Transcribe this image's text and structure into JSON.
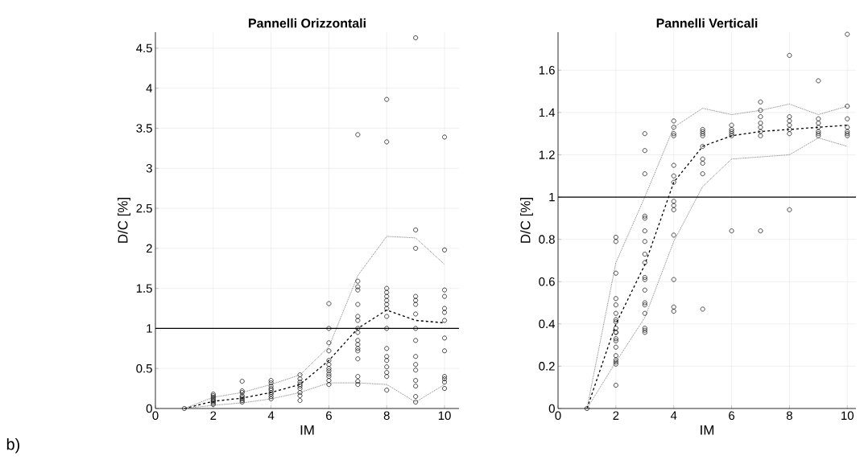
{
  "chart_data": [
    {
      "type": "scatter",
      "title": "Pannelli Orizzontali",
      "xlabel": "IM",
      "ylabel": "D/C [%]",
      "xlim": [
        0,
        10.5
      ],
      "ylim": [
        0,
        4.7
      ],
      "xticks": [
        0,
        2,
        4,
        6,
        8,
        10
      ],
      "yticks": [
        0,
        0.5,
        1,
        1.5,
        2,
        2.5,
        3,
        3.5,
        4,
        4.5
      ],
      "grid": true,
      "annotations": [
        "b)"
      ],
      "ref_lines": [
        {
          "axis": "y",
          "value": 1,
          "color": "#000000"
        }
      ],
      "series": [
        {
          "marker": "circle",
          "color": "#000000",
          "x": [
            1,
            2,
            2,
            2,
            2,
            2,
            2,
            2,
            2,
            3,
            3,
            3,
            3,
            3,
            3,
            3,
            3,
            4,
            4,
            4,
            4,
            4,
            4,
            4,
            4,
            4,
            5,
            5,
            5,
            5,
            5,
            5,
            5,
            5,
            5,
            6,
            6,
            6,
            6,
            6,
            6,
            6,
            6,
            6,
            6,
            6,
            6,
            7,
            7,
            7,
            7,
            7,
            7,
            7,
            7,
            7,
            7,
            7,
            7,
            7,
            7,
            7,
            7,
            7,
            8,
            8,
            8,
            8,
            8,
            8,
            8,
            8,
            8,
            8,
            8,
            8,
            8,
            8,
            8,
            8,
            8,
            9,
            9,
            9,
            9,
            9,
            9,
            9,
            9,
            9,
            9,
            9,
            9,
            9,
            9,
            9,
            9,
            10,
            10,
            10,
            10,
            10,
            10,
            10,
            10,
            10,
            10,
            10,
            10,
            10
          ],
          "values": [
            0,
            0.05,
            0.07,
            0.09,
            0.1,
            0.12,
            0.14,
            0.16,
            0.18,
            0.08,
            0.1,
            0.12,
            0.14,
            0.16,
            0.2,
            0.22,
            0.34,
            0.12,
            0.15,
            0.18,
            0.2,
            0.23,
            0.25,
            0.28,
            0.32,
            0.35,
            0.1,
            0.16,
            0.2,
            0.25,
            0.28,
            0.3,
            0.33,
            0.37,
            0.42,
            0.3,
            0.35,
            0.4,
            0.43,
            0.47,
            0.5,
            0.55,
            0.6,
            0.72,
            0.82,
            1.0,
            1.31,
            0.3,
            0.34,
            0.4,
            0.62,
            0.72,
            0.75,
            0.8,
            0.85,
            0.95,
            1.0,
            1.1,
            1.15,
            1.3,
            1.48,
            1.52,
            1.59,
            3.42,
            0.23,
            0.4,
            0.45,
            0.52,
            0.6,
            0.65,
            0.75,
            1.0,
            1.15,
            1.25,
            1.3,
            1.35,
            1.4,
            1.45,
            1.5,
            3.33,
            3.86,
            0.08,
            0.15,
            0.28,
            0.35,
            0.48,
            0.55,
            0.65,
            0.85,
            1.0,
            1.18,
            1.3,
            1.35,
            1.4,
            2.0,
            2.23,
            4.63,
            0.25,
            0.33,
            0.37,
            0.4,
            0.72,
            0.88,
            1.1,
            1.2,
            1.25,
            1.4,
            1.48,
            1.98,
            3.39
          ]
        },
        {
          "type": "line",
          "line_style": "dashed",
          "color": "#000000",
          "x": [
            1,
            2,
            3,
            4,
            5,
            6,
            7,
            8,
            9,
            10
          ],
          "values": [
            0,
            0.09,
            0.13,
            0.2,
            0.3,
            0.6,
            1.0,
            1.23,
            1.1,
            1.07
          ]
        },
        {
          "type": "line",
          "line_style": "dotted",
          "color": "#666666",
          "x": [
            1,
            2,
            3,
            4,
            5,
            6,
            7,
            8,
            9,
            10
          ],
          "values": [
            0,
            0.14,
            0.2,
            0.3,
            0.42,
            0.77,
            1.66,
            2.15,
            2.13,
            1.8
          ]
        },
        {
          "type": "line",
          "line_style": "dotted",
          "color": "#666666",
          "x": [
            1,
            2,
            3,
            4,
            5,
            6,
            7,
            8,
            9,
            10
          ],
          "values": [
            0,
            0.04,
            0.07,
            0.12,
            0.2,
            0.32,
            0.32,
            0.3,
            0.08,
            0.3
          ]
        }
      ]
    },
    {
      "type": "scatter",
      "title": "Pannelli Verticali",
      "xlabel": "IM",
      "ylabel": "D/C [%]",
      "xlim": [
        0,
        10.3
      ],
      "ylim": [
        0,
        1.78
      ],
      "xticks": [
        0,
        2,
        4,
        6,
        8,
        10
      ],
      "yticks": [
        0,
        0.2,
        0.4,
        0.6,
        0.8,
        1,
        1.2,
        1.4,
        1.6
      ],
      "grid": true,
      "ref_lines": [
        {
          "axis": "y",
          "value": 1,
          "color": "#000000"
        }
      ],
      "series": [
        {
          "marker": "circle",
          "color": "#000000",
          "x": [
            1,
            2,
            2,
            2,
            2,
            2,
            2,
            2,
            2,
            2,
            2,
            2,
            2,
            2,
            2,
            2,
            2,
            2,
            2,
            2,
            3,
            3,
            3,
            3,
            3,
            3,
            3,
            3,
            3,
            3,
            3,
            3,
            3,
            3,
            3,
            3,
            3,
            3,
            4,
            4,
            4,
            4,
            4,
            4,
            4,
            4,
            4,
            4,
            4,
            4,
            4,
            4,
            5,
            5,
            5,
            5,
            5,
            5,
            5,
            5,
            5,
            6,
            6,
            6,
            6,
            6,
            6,
            7,
            7,
            7,
            7,
            7,
            7,
            7,
            7,
            8,
            8,
            8,
            8,
            8,
            8,
            8,
            9,
            9,
            9,
            9,
            9,
            9,
            9,
            10,
            10,
            10,
            10,
            10,
            10,
            10
          ],
          "values": [
            0,
            0.81,
            0.79,
            0.64,
            0.52,
            0.49,
            0.45,
            0.42,
            0.41,
            0.38,
            0.36,
            0.36,
            0.33,
            0.32,
            0.29,
            0.25,
            0.23,
            0.22,
            0.21,
            0.11,
            1.3,
            1.22,
            1.11,
            0.91,
            0.9,
            0.84,
            0.79,
            0.73,
            0.69,
            0.62,
            0.61,
            0.56,
            0.5,
            0.49,
            0.45,
            0.38,
            0.37,
            0.36,
            1.36,
            1.33,
            1.3,
            1.29,
            1.15,
            1.1,
            1.07,
            0.98,
            0.96,
            0.94,
            0.82,
            0.61,
            0.48,
            0.46,
            1.32,
            1.31,
            1.3,
            1.29,
            1.24,
            1.18,
            1.16,
            1.11,
            0.47,
            1.34,
            1.32,
            1.31,
            1.3,
            1.29,
            0.84,
            1.45,
            1.41,
            1.38,
            1.35,
            1.33,
            1.31,
            1.29,
            0.84,
            1.67,
            1.38,
            1.36,
            1.34,
            1.32,
            1.3,
            0.94,
            1.55,
            1.37,
            1.35,
            1.33,
            1.31,
            1.3,
            1.29,
            1.77,
            1.43,
            1.37,
            1.33,
            1.31,
            1.3,
            1.29
          ]
        },
        {
          "type": "line",
          "line_style": "dashed",
          "color": "#000000",
          "x": [
            1,
            2,
            3,
            4,
            5,
            6,
            7,
            8,
            9,
            10
          ],
          "values": [
            0,
            0.4,
            0.68,
            1.07,
            1.24,
            1.29,
            1.31,
            1.32,
            1.33,
            1.34
          ]
        },
        {
          "type": "line",
          "line_style": "dotted",
          "color": "#666666",
          "x": [
            1,
            2,
            3,
            4,
            5,
            6,
            7,
            8,
            9,
            10
          ],
          "values": [
            0,
            0.69,
            1.0,
            1.33,
            1.42,
            1.39,
            1.41,
            1.44,
            1.39,
            1.43
          ]
        },
        {
          "type": "line",
          "line_style": "dotted",
          "color": "#666666",
          "x": [
            1,
            2,
            3,
            4,
            5,
            6,
            7,
            8,
            9,
            10
          ],
          "values": [
            0,
            0.22,
            0.43,
            0.79,
            1.05,
            1.18,
            1.19,
            1.2,
            1.28,
            1.24
          ]
        }
      ]
    }
  ]
}
